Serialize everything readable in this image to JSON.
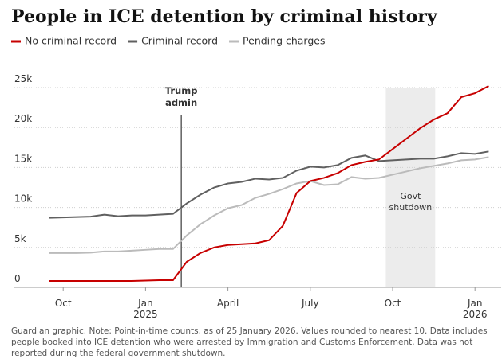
{
  "chart_data": {
    "type": "line",
    "title": "People in ICE detention by criminal history",
    "categories": [
      null,
      "Oct",
      null,
      null,
      null,
      null,
      null,
      "Jan 2025",
      null,
      null,
      null,
      null,
      null,
      "April",
      null,
      null,
      null,
      null,
      null,
      "July",
      null,
      null,
      null,
      null,
      null,
      "Oct",
      null,
      null,
      null,
      null,
      null,
      "Jan 2026",
      null
    ],
    "series": [
      {
        "name": "No criminal record",
        "color": "#c70000",
        "values": [
          800,
          800,
          800,
          800,
          800,
          800,
          800,
          850,
          900,
          900,
          3200,
          4300,
          5000,
          5300,
          5400,
          5500,
          5900,
          7700,
          11800,
          13300,
          13700,
          14300,
          15300,
          15700,
          16000,
          17300,
          18600,
          19900,
          21000,
          21800,
          23800,
          24300,
          25200
        ]
      },
      {
        "name": "Criminal record",
        "color": "#606060",
        "values": [
          8700,
          8750,
          8800,
          8850,
          9100,
          8900,
          9000,
          9000,
          9100,
          9200,
          10500,
          11600,
          12500,
          13000,
          13200,
          13600,
          13500,
          13700,
          14600,
          15100,
          15000,
          15300,
          16200,
          16500,
          15800,
          15900,
          16000,
          16100,
          16100,
          16400,
          16800,
          16700,
          17000
        ]
      },
      {
        "name": "Pending charges",
        "color": "#bbbbbb",
        "values": [
          4300,
          4300,
          4300,
          4350,
          4500,
          4500,
          4600,
          4700,
          4800,
          4800,
          6500,
          7900,
          9000,
          9900,
          10300,
          11200,
          11700,
          12300,
          13000,
          13300,
          12800,
          12900,
          13800,
          13600,
          13700,
          14100,
          14500,
          14900,
          15200,
          15500,
          15900,
          16000,
          16300
        ]
      }
    ],
    "ylim": [
      0,
      25000
    ],
    "yticks": [
      {
        "value": 0,
        "label": "0"
      },
      {
        "value": 5000,
        "label": "5k"
      },
      {
        "value": 10000,
        "label": "10k"
      },
      {
        "value": 15000,
        "label": "15k"
      },
      {
        "value": 20000,
        "label": "20k"
      },
      {
        "value": 25000,
        "label": "25k"
      }
    ],
    "grid": true,
    "annotations": [
      "Trump admin",
      "Govt shutdown"
    ],
    "note": "Guardian graphic. Note: Point-in-time counts, as of 25 January 2026. Values rounded to nearest 10. Data includes people booked into ICE detention who were arrested by Immigration and Customs Enforcement. Data was not reported during the federal government shutdown."
  }
}
